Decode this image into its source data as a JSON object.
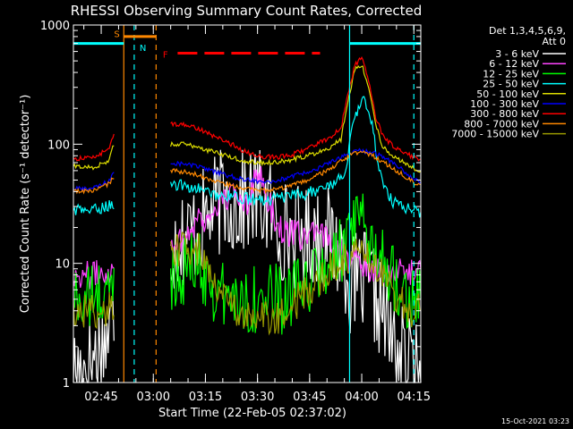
{
  "chart_data": {
    "type": "line",
    "title": "RHESSI Observing Summary Count Rates, Corrected",
    "xlabel": "Start Time (22-Feb-05 02:37:02)",
    "ylabel": "Corrected Count Rate (s⁻¹ detector⁻¹)",
    "yscale": "log",
    "ylim": [
      1,
      1000
    ],
    "xlim_minutes": [
      0,
      100
    ],
    "x_ticks": [
      {
        "label": "02:45",
        "t": 8
      },
      {
        "label": "03:00",
        "t": 23
      },
      {
        "label": "03:15",
        "t": 38
      },
      {
        "label": "03:30",
        "t": 53
      },
      {
        "label": "03:45",
        "t": 68
      },
      {
        "label": "04:00",
        "t": 83
      },
      {
        "label": "04:15",
        "t": 98
      }
    ],
    "y_ticks": [
      {
        "label": "1",
        "v": 1
      },
      {
        "label": "10",
        "v": 10
      },
      {
        "label": "100",
        "v": 100
      },
      {
        "label": "1000",
        "v": 1000
      }
    ],
    "legend": {
      "header1": "Det 1,3,4,5,6,9,",
      "header2": "Att 0",
      "placement": "right"
    },
    "series": [
      {
        "name": "3 - 6 keV",
        "color": "#ffffff",
        "noise": 0.45,
        "points": [
          [
            0,
            1.2
          ],
          [
            5,
            1.5
          ],
          [
            10,
            2.5
          ],
          [
            12,
            3.5
          ],
          [
            15,
            null
          ],
          [
            28,
            15
          ],
          [
            32,
            17
          ],
          [
            36,
            20
          ],
          [
            38,
            24
          ],
          [
            41,
            30
          ],
          [
            44,
            35
          ],
          [
            47,
            30
          ],
          [
            50,
            34
          ],
          [
            53,
            35
          ],
          [
            56,
            30
          ],
          [
            59,
            20
          ],
          [
            62,
            18
          ],
          [
            66,
            16
          ],
          [
            70,
            18
          ],
          [
            74,
            15
          ],
          [
            78,
            12
          ],
          [
            80,
            6
          ],
          [
            83,
            7
          ],
          [
            86,
            6
          ],
          [
            89,
            4
          ],
          [
            92,
            2
          ],
          [
            95,
            1.6
          ],
          [
            98,
            1.2
          ],
          [
            100,
            1.0
          ]
        ]
      },
      {
        "name": "6 - 12 keV",
        "color": "#ff44ff",
        "noise": 0.12,
        "points": [
          [
            0,
            8
          ],
          [
            6,
            8
          ],
          [
            12,
            9
          ],
          [
            15,
            null
          ],
          [
            28,
            15
          ],
          [
            32,
            16
          ],
          [
            36,
            25
          ],
          [
            38,
            22
          ],
          [
            41,
            30
          ],
          [
            44,
            35
          ],
          [
            47,
            38
          ],
          [
            50,
            33
          ],
          [
            53,
            60
          ],
          [
            56,
            34
          ],
          [
            59,
            20
          ],
          [
            62,
            18
          ],
          [
            66,
            17
          ],
          [
            70,
            17
          ],
          [
            74,
            16
          ],
          [
            78,
            13
          ],
          [
            80,
            10
          ],
          [
            83,
            10
          ],
          [
            86,
            9
          ],
          [
            89,
            9
          ],
          [
            92,
            8
          ],
          [
            95,
            8.5
          ],
          [
            98,
            8.5
          ],
          [
            100,
            9
          ]
        ]
      },
      {
        "name": "12 - 25 keV",
        "color": "#00ff00",
        "noise": 0.3,
        "points": [
          [
            0,
            5
          ],
          [
            6,
            5
          ],
          [
            12,
            6
          ],
          [
            15,
            null
          ],
          [
            28,
            8
          ],
          [
            32,
            9
          ],
          [
            36,
            10
          ],
          [
            38,
            8
          ],
          [
            41,
            6
          ],
          [
            44,
            5
          ],
          [
            47,
            5
          ],
          [
            50,
            5
          ],
          [
            53,
            5
          ],
          [
            56,
            5
          ],
          [
            59,
            5
          ],
          [
            62,
            5
          ],
          [
            66,
            6
          ],
          [
            70,
            8
          ],
          [
            74,
            10
          ],
          [
            78,
            13
          ],
          [
            80,
            18
          ],
          [
            83,
            20
          ],
          [
            86,
            15
          ],
          [
            89,
            12
          ],
          [
            92,
            8
          ],
          [
            95,
            6
          ],
          [
            98,
            5
          ],
          [
            100,
            5
          ]
        ]
      },
      {
        "name": "25 - 50 keV",
        "color": "#00ffff",
        "noise": 0.05,
        "points": [
          [
            0,
            28
          ],
          [
            6,
            28
          ],
          [
            12,
            32
          ],
          [
            15,
            null
          ],
          [
            28,
            45
          ],
          [
            32,
            45
          ],
          [
            36,
            42
          ],
          [
            38,
            40
          ],
          [
            41,
            38
          ],
          [
            44,
            37
          ],
          [
            47,
            36
          ],
          [
            50,
            35
          ],
          [
            53,
            34
          ],
          [
            56,
            34
          ],
          [
            59,
            35
          ],
          [
            62,
            36
          ],
          [
            66,
            38
          ],
          [
            70,
            41
          ],
          [
            74,
            45
          ],
          [
            78,
            55
          ],
          [
            80,
            120
          ],
          [
            82,
            200
          ],
          [
            84,
            240
          ],
          [
            86,
            150
          ],
          [
            88,
            60
          ],
          [
            90,
            40
          ],
          [
            92,
            33
          ],
          [
            95,
            30
          ],
          [
            98,
            28
          ],
          [
            100,
            27
          ]
        ]
      },
      {
        "name": "50 - 100 keV",
        "color": "#dddd00",
        "noise": 0.02,
        "points": [
          [
            0,
            65
          ],
          [
            6,
            64
          ],
          [
            10,
            72
          ],
          [
            12,
            105
          ],
          [
            15,
            null
          ],
          [
            28,
            100
          ],
          [
            32,
            100
          ],
          [
            36,
            95
          ],
          [
            38,
            90
          ],
          [
            41,
            85
          ],
          [
            44,
            80
          ],
          [
            47,
            75
          ],
          [
            50,
            72
          ],
          [
            53,
            70
          ],
          [
            56,
            70
          ],
          [
            59,
            71
          ],
          [
            62,
            73
          ],
          [
            66,
            78
          ],
          [
            70,
            85
          ],
          [
            74,
            95
          ],
          [
            77,
            110
          ],
          [
            79,
            230
          ],
          [
            81,
            420
          ],
          [
            83,
            470
          ],
          [
            85,
            300
          ],
          [
            87,
            150
          ],
          [
            89,
            95
          ],
          [
            92,
            80
          ],
          [
            95,
            70
          ],
          [
            98,
            62
          ],
          [
            100,
            60
          ]
        ]
      },
      {
        "name": "100 - 300 keV",
        "color": "#0000ff",
        "noise": 0.02,
        "points": [
          [
            0,
            42
          ],
          [
            6,
            43
          ],
          [
            10,
            48
          ],
          [
            12,
            60
          ],
          [
            15,
            null
          ],
          [
            28,
            70
          ],
          [
            32,
            68
          ],
          [
            36,
            65
          ],
          [
            38,
            62
          ],
          [
            41,
            58
          ],
          [
            44,
            55
          ],
          [
            47,
            52
          ],
          [
            50,
            50
          ],
          [
            53,
            49
          ],
          [
            56,
            49
          ],
          [
            59,
            50
          ],
          [
            62,
            52
          ],
          [
            66,
            57
          ],
          [
            70,
            62
          ],
          [
            74,
            70
          ],
          [
            78,
            80
          ],
          [
            80,
            85
          ],
          [
            83,
            88
          ],
          [
            86,
            85
          ],
          [
            89,
            80
          ],
          [
            92,
            70
          ],
          [
            95,
            60
          ],
          [
            98,
            50
          ],
          [
            100,
            48
          ]
        ]
      },
      {
        "name": "300 - 800 keV",
        "color": "#ff0000",
        "noise": 0.02,
        "points": [
          [
            0,
            75
          ],
          [
            6,
            78
          ],
          [
            10,
            90
          ],
          [
            12,
            125
          ],
          [
            15,
            null
          ],
          [
            28,
            150
          ],
          [
            32,
            145
          ],
          [
            36,
            135
          ],
          [
            38,
            125
          ],
          [
            41,
            115
          ],
          [
            44,
            105
          ],
          [
            47,
            95
          ],
          [
            50,
            85
          ],
          [
            53,
            80
          ],
          [
            56,
            78
          ],
          [
            59,
            78
          ],
          [
            62,
            80
          ],
          [
            66,
            88
          ],
          [
            70,
            100
          ],
          [
            74,
            115
          ],
          [
            77,
            135
          ],
          [
            79,
            260
          ],
          [
            81,
            460
          ],
          [
            83,
            540
          ],
          [
            85,
            340
          ],
          [
            87,
            170
          ],
          [
            89,
            120
          ],
          [
            92,
            95
          ],
          [
            95,
            85
          ],
          [
            98,
            78
          ],
          [
            100,
            75
          ]
        ]
      },
      {
        "name": "800 - 7000 keV",
        "color": "#ff8800",
        "noise": 0.02,
        "points": [
          [
            0,
            40
          ],
          [
            6,
            41
          ],
          [
            10,
            46
          ],
          [
            12,
            55
          ],
          [
            15,
            null
          ],
          [
            28,
            60
          ],
          [
            32,
            58
          ],
          [
            36,
            55
          ],
          [
            38,
            52
          ],
          [
            41,
            49
          ],
          [
            44,
            46
          ],
          [
            47,
            44
          ],
          [
            50,
            42
          ],
          [
            53,
            41
          ],
          [
            56,
            41
          ],
          [
            59,
            42
          ],
          [
            62,
            44
          ],
          [
            66,
            48
          ],
          [
            70,
            54
          ],
          [
            74,
            62
          ],
          [
            78,
            75
          ],
          [
            80,
            82
          ],
          [
            83,
            85
          ],
          [
            86,
            80
          ],
          [
            89,
            72
          ],
          [
            92,
            62
          ],
          [
            95,
            55
          ],
          [
            98,
            48
          ],
          [
            100,
            46
          ]
        ]
      },
      {
        "name": "7000 - 15000 keV",
        "color": "#999900",
        "noise": 0.15,
        "points": [
          [
            0,
            4
          ],
          [
            6,
            4
          ],
          [
            12,
            4.2
          ],
          [
            15,
            null
          ],
          [
            28,
            12
          ],
          [
            32,
            14
          ],
          [
            36,
            13
          ],
          [
            38,
            10
          ],
          [
            41,
            7
          ],
          [
            44,
            5
          ],
          [
            47,
            4
          ],
          [
            50,
            3.5
          ],
          [
            53,
            3.4
          ],
          [
            56,
            3.4
          ],
          [
            59,
            3.6
          ],
          [
            62,
            4
          ],
          [
            66,
            5.5
          ],
          [
            70,
            7
          ],
          [
            74,
            9
          ],
          [
            78,
            11
          ],
          [
            80,
            12
          ],
          [
            83,
            13
          ],
          [
            86,
            11
          ],
          [
            89,
            8
          ],
          [
            92,
            6
          ],
          [
            95,
            4.5
          ],
          [
            98,
            4
          ],
          [
            100,
            4
          ]
        ]
      }
    ],
    "flags": {
      "lines": [
        {
          "t": 14.5,
          "color": "#ff8800",
          "style": "solid"
        },
        {
          "t": 17.5,
          "color": "#00ffff",
          "style": "dashed"
        },
        {
          "t": 23.8,
          "color": "#ff8800",
          "style": "dashed"
        },
        {
          "t": 79.5,
          "color": "#00ffff",
          "style": "solid"
        },
        {
          "t": 98.0,
          "color": "#00ffff",
          "style": "dashed"
        }
      ],
      "bars": [
        {
          "t0": 0,
          "t1": 14.5,
          "v": 700,
          "color": "#00ffff",
          "style": "solid"
        },
        {
          "t0": 14.5,
          "t1": 23.8,
          "v": 800,
          "color": "#ff8800",
          "style": "solid"
        },
        {
          "t0": 79.5,
          "t1": 100,
          "v": 700,
          "color": "#00ffff",
          "style": "solid"
        },
        {
          "t0": 30,
          "t1": 71,
          "v": 580,
          "color": "#ff0000",
          "style": "dashed"
        }
      ],
      "labels": [
        {
          "text": "S",
          "t": 12.5,
          "v": 850,
          "color": "#ff8800"
        },
        {
          "text": "N",
          "t": 20.0,
          "v": 650,
          "color": "#00ffff"
        },
        {
          "text": "F",
          "t": 26.5,
          "v": 570,
          "color": "#ff0000"
        }
      ]
    }
  },
  "footer": {
    "timestamp": "15-Oct-2021 03:23"
  }
}
